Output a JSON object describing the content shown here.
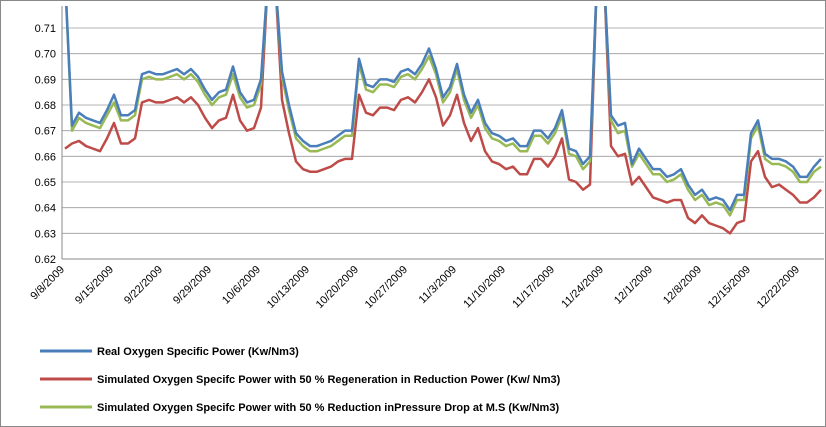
{
  "chart_data": {
    "type": "line",
    "categories": [
      "9/8/2009",
      null,
      null,
      null,
      null,
      null,
      null,
      "9/15/2009",
      null,
      null,
      null,
      null,
      null,
      null,
      "9/22/2009",
      null,
      null,
      null,
      null,
      null,
      null,
      "9/29/2009",
      null,
      null,
      null,
      null,
      null,
      null,
      "10/6/2009",
      null,
      null,
      null,
      null,
      null,
      null,
      "10/13/2009",
      null,
      null,
      null,
      null,
      null,
      null,
      "10/20/2009",
      null,
      null,
      null,
      null,
      null,
      null,
      "10/27/2009",
      null,
      null,
      null,
      null,
      null,
      null,
      "11/3/2009",
      null,
      null,
      null,
      null,
      null,
      null,
      "11/10/2009",
      null,
      null,
      null,
      null,
      null,
      null,
      "11/17/2009",
      null,
      null,
      null,
      null,
      null,
      null,
      "11/24/2009",
      null,
      null,
      null,
      null,
      null,
      null,
      "12/1/2009",
      null,
      null,
      null,
      null,
      null,
      null,
      "12/8/2009",
      null,
      null,
      null,
      null,
      null,
      null,
      "12/15/2009",
      null,
      null,
      null,
      null,
      null,
      null,
      "12/22/2009",
      null,
      null,
      null
    ],
    "series": [
      {
        "name": "Real Oxygen Specific Power (Kw/Nm3)",
        "color": "#4a7ebb",
        "values": [
          0.73,
          0.672,
          0.677,
          0.675,
          0.674,
          0.673,
          0.678,
          0.684,
          0.676,
          0.676,
          0.678,
          0.692,
          0.693,
          0.692,
          0.692,
          0.693,
          0.694,
          0.692,
          0.694,
          0.691,
          0.686,
          0.682,
          0.685,
          0.686,
          0.695,
          0.685,
          0.681,
          0.682,
          0.69,
          0.73,
          0.73,
          0.693,
          0.68,
          0.669,
          0.666,
          0.664,
          0.664,
          0.665,
          0.666,
          0.668,
          0.67,
          0.67,
          0.698,
          0.688,
          0.687,
          0.69,
          0.69,
          0.689,
          0.693,
          0.694,
          0.692,
          0.696,
          0.702,
          0.694,
          0.683,
          0.687,
          0.696,
          0.684,
          0.677,
          0.682,
          0.673,
          0.669,
          0.668,
          0.666,
          0.667,
          0.664,
          0.664,
          0.67,
          0.67,
          0.667,
          0.671,
          0.678,
          0.663,
          0.662,
          0.657,
          0.66,
          0.73,
          0.73,
          0.676,
          0.672,
          0.673,
          0.657,
          0.663,
          0.659,
          0.655,
          0.655,
          0.652,
          0.653,
          0.655,
          0.649,
          0.645,
          0.647,
          0.643,
          0.644,
          0.643,
          0.639,
          0.645,
          0.645,
          0.669,
          0.674,
          0.661,
          0.659,
          0.659,
          0.658,
          0.656,
          0.652,
          0.652,
          0.656,
          0.659
        ]
      },
      {
        "name": "Simulated Oxygen Specifc Power with 50 % Regeneration in Reduction Power (Kw/ Nm3)",
        "color": "#be4b48",
        "values": [
          0.663,
          0.665,
          0.666,
          0.664,
          0.663,
          0.662,
          0.667,
          0.673,
          0.665,
          0.665,
          0.667,
          0.681,
          0.682,
          0.681,
          0.681,
          0.682,
          0.683,
          0.681,
          0.683,
          0.68,
          0.675,
          0.671,
          0.674,
          0.675,
          0.684,
          0.674,
          0.67,
          0.671,
          0.679,
          0.73,
          0.73,
          0.682,
          0.669,
          0.658,
          0.655,
          0.654,
          0.654,
          0.655,
          0.656,
          0.658,
          0.659,
          0.659,
          0.684,
          0.677,
          0.676,
          0.679,
          0.679,
          0.678,
          0.682,
          0.683,
          0.681,
          0.685,
          0.69,
          0.683,
          0.672,
          0.676,
          0.684,
          0.673,
          0.666,
          0.671,
          0.662,
          0.658,
          0.657,
          0.655,
          0.656,
          0.653,
          0.653,
          0.659,
          0.659,
          0.656,
          0.66,
          0.667,
          0.651,
          0.65,
          0.647,
          0.649,
          0.73,
          0.73,
          0.664,
          0.66,
          0.661,
          0.649,
          0.652,
          0.648,
          0.644,
          0.643,
          0.642,
          0.643,
          0.643,
          0.636,
          0.634,
          0.637,
          0.634,
          0.633,
          0.632,
          0.63,
          0.634,
          0.635,
          0.658,
          0.662,
          0.652,
          0.648,
          0.649,
          0.647,
          0.645,
          0.642,
          0.642,
          0.644,
          0.647
        ]
      },
      {
        "name": "Simulated Oxygen Specifc Power with 50 % Reduction inPressure Drop at M.S  (Kw/Nm3)",
        "color": "#98b954",
        "values": [
          0.73,
          0.67,
          0.675,
          0.673,
          0.672,
          0.671,
          0.676,
          0.681,
          0.674,
          0.674,
          0.676,
          0.69,
          0.691,
          0.69,
          0.69,
          0.691,
          0.692,
          0.69,
          0.692,
          0.689,
          0.684,
          0.68,
          0.683,
          0.684,
          0.692,
          0.683,
          0.679,
          0.68,
          0.688,
          0.73,
          0.73,
          0.691,
          0.678,
          0.667,
          0.664,
          0.662,
          0.662,
          0.663,
          0.664,
          0.666,
          0.668,
          0.668,
          0.696,
          0.686,
          0.685,
          0.688,
          0.688,
          0.687,
          0.691,
          0.692,
          0.69,
          0.694,
          0.699,
          0.692,
          0.681,
          0.685,
          0.694,
          0.682,
          0.675,
          0.68,
          0.671,
          0.667,
          0.666,
          0.664,
          0.665,
          0.662,
          0.662,
          0.668,
          0.668,
          0.665,
          0.669,
          0.676,
          0.661,
          0.66,
          0.655,
          0.658,
          0.73,
          0.73,
          0.674,
          0.669,
          0.67,
          0.656,
          0.661,
          0.657,
          0.653,
          0.653,
          0.65,
          0.651,
          0.653,
          0.647,
          0.643,
          0.645,
          0.641,
          0.642,
          0.641,
          0.637,
          0.643,
          0.643,
          0.667,
          0.672,
          0.659,
          0.657,
          0.657,
          0.656,
          0.654,
          0.65,
          0.65,
          0.654,
          0.656
        ]
      }
    ],
    "ylim": [
      0.62,
      0.71
    ],
    "yticks": [
      0.62,
      0.63,
      0.64,
      0.65,
      0.66,
      0.67,
      0.68,
      0.69,
      {
        "value": 0.7,
        "label": "0.70"
      },
      0.71
    ],
    "grid": true,
    "legend": "bottom"
  }
}
